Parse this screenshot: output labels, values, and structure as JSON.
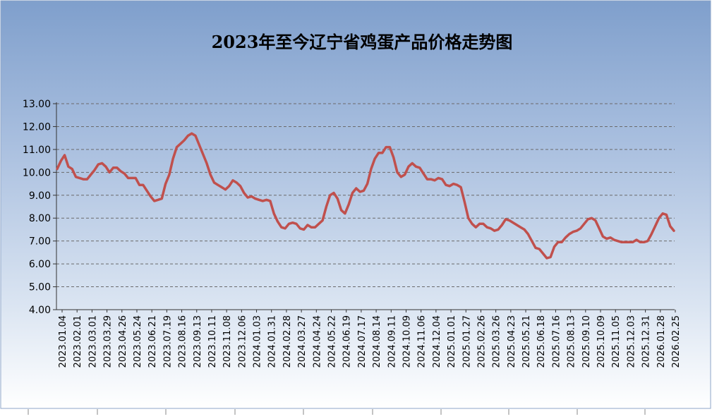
{
  "chart_data": {
    "type": "line",
    "title": "2023年至今辽宁省鸡蛋产品价格走势图",
    "xlabel": "",
    "ylabel": "",
    "ylim": [
      4.0,
      13.0
    ],
    "yticks": [
      "4.00",
      "5.00",
      "6.00",
      "7.00",
      "8.00",
      "9.00",
      "10.00",
      "11.00",
      "12.00",
      "13.00"
    ],
    "xtick_labels": [
      "2023.01.04",
      "2023.02.01",
      "2023.03.01",
      "2023.03.29",
      "2023.04.26",
      "2023.05.24",
      "2023.06.21",
      "2023.07.19",
      "2023.08.16",
      "2023.09.13",
      "2023.10.11",
      "2023.11.08",
      "2023.12.06",
      "2024.01.03",
      "2024.01.31",
      "2024.02.28",
      "2024.03.27",
      "2024.04.24",
      "2024.05.22",
      "2024.06.19",
      "2024.07.17",
      "2024.08.14",
      "2024.09.11",
      "2024.10.09",
      "2024.11.06",
      "2024.12.04",
      "2025.01.01",
      "2025.01.27",
      "2025.02.26",
      "2025.03.26",
      "2025.04.23",
      "2025.05.21",
      "2025.06.18",
      "2025.07.16",
      "2025.08.13",
      "2025.09.10",
      "2025.10.09",
      "2025.11.05",
      "2025.12.03",
      "2025.12.31",
      "2026.01.28",
      "2026.02.25"
    ],
    "grid": true,
    "legend": "none",
    "line_color": "#c0504d",
    "series": [
      {
        "values": [
          10.15,
          10.5,
          10.75,
          10.25,
          10.15,
          9.8,
          9.75,
          9.7,
          9.7,
          9.9,
          10.1,
          10.35,
          10.4,
          10.25,
          10.0,
          10.2,
          10.2,
          10.05,
          9.95,
          9.75,
          9.75,
          9.75,
          9.45,
          9.45,
          9.2,
          8.95,
          8.75,
          8.8,
          8.85,
          9.5,
          9.9,
          10.6,
          11.1,
          11.25,
          11.4,
          11.6,
          11.7,
          11.6,
          11.2,
          10.8,
          10.4,
          9.9,
          9.55,
          9.45,
          9.35,
          9.25,
          9.4,
          9.65,
          9.55,
          9.4,
          9.1,
          8.9,
          8.95,
          8.85,
          8.8,
          8.75,
          8.8,
          8.75,
          8.2,
          7.85,
          7.6,
          7.55,
          7.75,
          7.8,
          7.75,
          7.55,
          7.5,
          7.7,
          7.6,
          7.6,
          7.75,
          7.9,
          8.5,
          9.0,
          9.1,
          8.85,
          8.35,
          8.2,
          8.6,
          9.1,
          9.3,
          9.15,
          9.2,
          9.5,
          10.15,
          10.6,
          10.85,
          10.85,
          11.1,
          11.1,
          10.65,
          10.0,
          9.8,
          9.9,
          10.25,
          10.4,
          10.25,
          10.2,
          9.95,
          9.7,
          9.7,
          9.65,
          9.75,
          9.7,
          9.45,
          9.4,
          9.5,
          9.45,
          9.35,
          8.7,
          8.0,
          7.75,
          7.6,
          7.75,
          7.75,
          7.6,
          7.55,
          7.45,
          7.5,
          7.7,
          7.95,
          7.9,
          7.8,
          7.7,
          7.6,
          7.5,
          7.3,
          7.0,
          6.7,
          6.65,
          6.45,
          6.25,
          6.3,
          6.75,
          6.95,
          6.95,
          7.15,
          7.3,
          7.4,
          7.45,
          7.55,
          7.75,
          7.95,
          8.0,
          7.9,
          7.55,
          7.2,
          7.1,
          7.15,
          7.05,
          7.0,
          6.95,
          6.95,
          6.95,
          6.95,
          7.05,
          6.95,
          6.95,
          7.0,
          7.3,
          7.65,
          8.0,
          8.2,
          8.15,
          7.65,
          7.45
        ]
      }
    ]
  }
}
